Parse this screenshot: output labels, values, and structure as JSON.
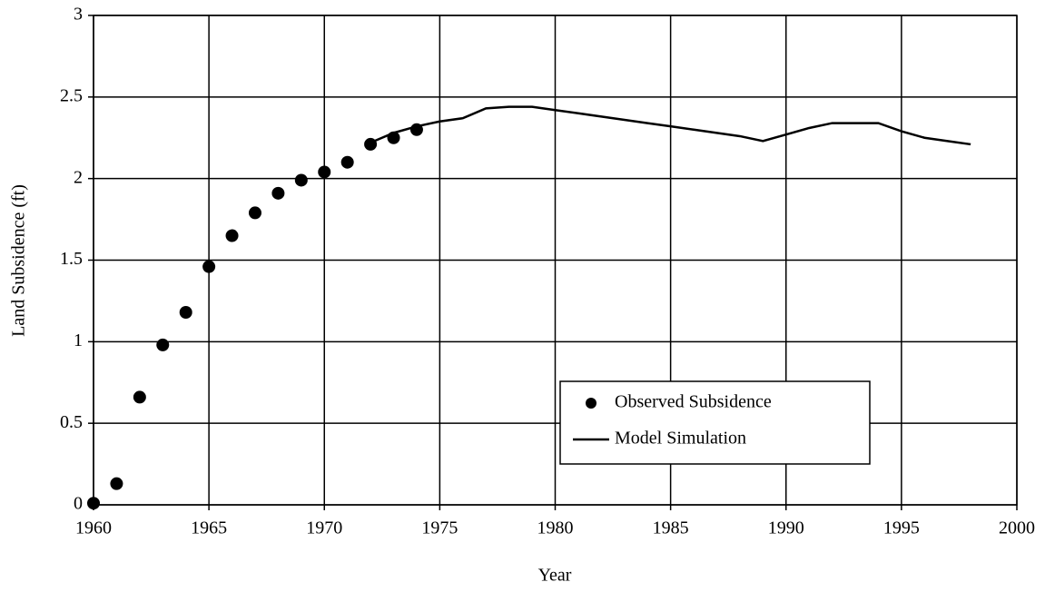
{
  "chart_data": {
    "type": "scatter",
    "x_label": "Year",
    "y_label": "Land Subsidence (ft)",
    "xlim": [
      1960,
      2000
    ],
    "xticks": [
      1960,
      1965,
      1970,
      1975,
      1980,
      1985,
      1990,
      1995,
      2000
    ],
    "ylim": [
      0,
      3
    ],
    "yticks": [
      0,
      0.5,
      1,
      1.5,
      2,
      2.5,
      3
    ],
    "grid": true,
    "legend": "lower right",
    "series": [
      {
        "name": "Observed Subsidence",
        "type": "scatter",
        "color": "#000000",
        "x": [
          1960,
          1961,
          1962,
          1963,
          1964,
          1965,
          1966,
          1967,
          1968,
          1969,
          1970,
          1971,
          1972,
          1973,
          1974
        ],
        "values": [
          0.01,
          0.13,
          0.66,
          0.98,
          1.18,
          1.46,
          1.65,
          1.79,
          1.91,
          1.99,
          2.04,
          2.1,
          2.21,
          2.25,
          2.3
        ]
      },
      {
        "name": "Model Simulation",
        "type": "line",
        "color": "#000000",
        "x": [
          1972,
          1973,
          1974,
          1975,
          1976,
          1977,
          1978,
          1979,
          1980,
          1981,
          1982,
          1983,
          1984,
          1985,
          1986,
          1987,
          1988,
          1989,
          1990,
          1991,
          1992,
          1993,
          1994,
          1995,
          1996,
          1997,
          1998
        ],
        "values": [
          2.22,
          2.28,
          2.32,
          2.35,
          2.37,
          2.43,
          2.44,
          2.44,
          2.42,
          2.4,
          2.38,
          2.36,
          2.34,
          2.32,
          2.3,
          2.28,
          2.26,
          2.23,
          2.27,
          2.31,
          2.34,
          2.34,
          2.34,
          2.29,
          2.25,
          2.23,
          2.21
        ]
      }
    ]
  }
}
